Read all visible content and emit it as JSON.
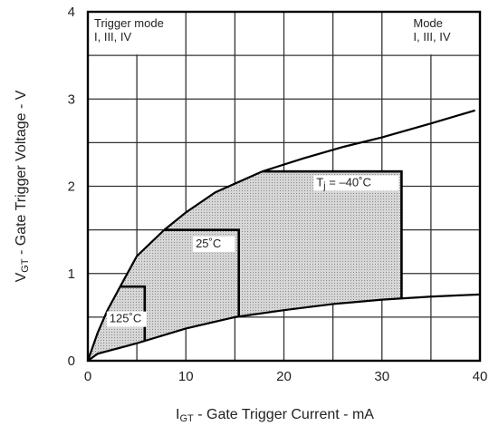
{
  "chart_data": {
    "type": "area-curves",
    "x_label": [
      "I",
      "GT",
      " - Gate Trigger Current - mA"
    ],
    "y_label": [
      "V",
      "GT",
      " - Gate Trigger Voltage - V"
    ],
    "xlim": [
      0,
      40
    ],
    "ylim": [
      0,
      4
    ],
    "xticks": [
      0,
      10,
      20,
      30,
      40
    ],
    "yticks": [
      0,
      1,
      2,
      3,
      4
    ],
    "xminor": [
      5,
      15,
      25,
      35
    ],
    "yminor": [
      0.5,
      1.5,
      2.5,
      3.5
    ],
    "grid": true,
    "series": [
      {
        "x": [
          0,
          1,
          2,
          3.3,
          5,
          7.8,
          10,
          13,
          17.8,
          22,
          26,
          30,
          35,
          39.5
        ],
        "values": [
          0,
          0.32,
          0.58,
          0.85,
          1.2,
          1.5,
          1.7,
          1.93,
          2.17,
          2.32,
          2.45,
          2.56,
          2.72,
          2.87
        ]
      },
      {
        "x": [
          0,
          1,
          5,
          10,
          15,
          20,
          25,
          30,
          35,
          40
        ],
        "values": [
          0,
          0.08,
          0.2,
          0.37,
          0.5,
          0.58,
          0.65,
          0.7,
          0.735,
          0.76
        ]
      }
    ],
    "regions": [
      {
        "label": [
          "125˚C"
        ],
        "x_max": 5.8,
        "v_max": 0.85
      },
      {
        "label": [
          "25˚C"
        ],
        "x_max": 15.4,
        "v_max": 1.5
      },
      {
        "label": [
          "T",
          "j",
          " = –40˚C"
        ],
        "x_max": 32,
        "v_max": 2.17
      }
    ],
    "annotations": [
      {
        "lines": [
          "Trigger mode",
          "I, III, IV"
        ]
      },
      {
        "lines": [
          "Mode",
          "I, III, IV"
        ]
      }
    ]
  }
}
